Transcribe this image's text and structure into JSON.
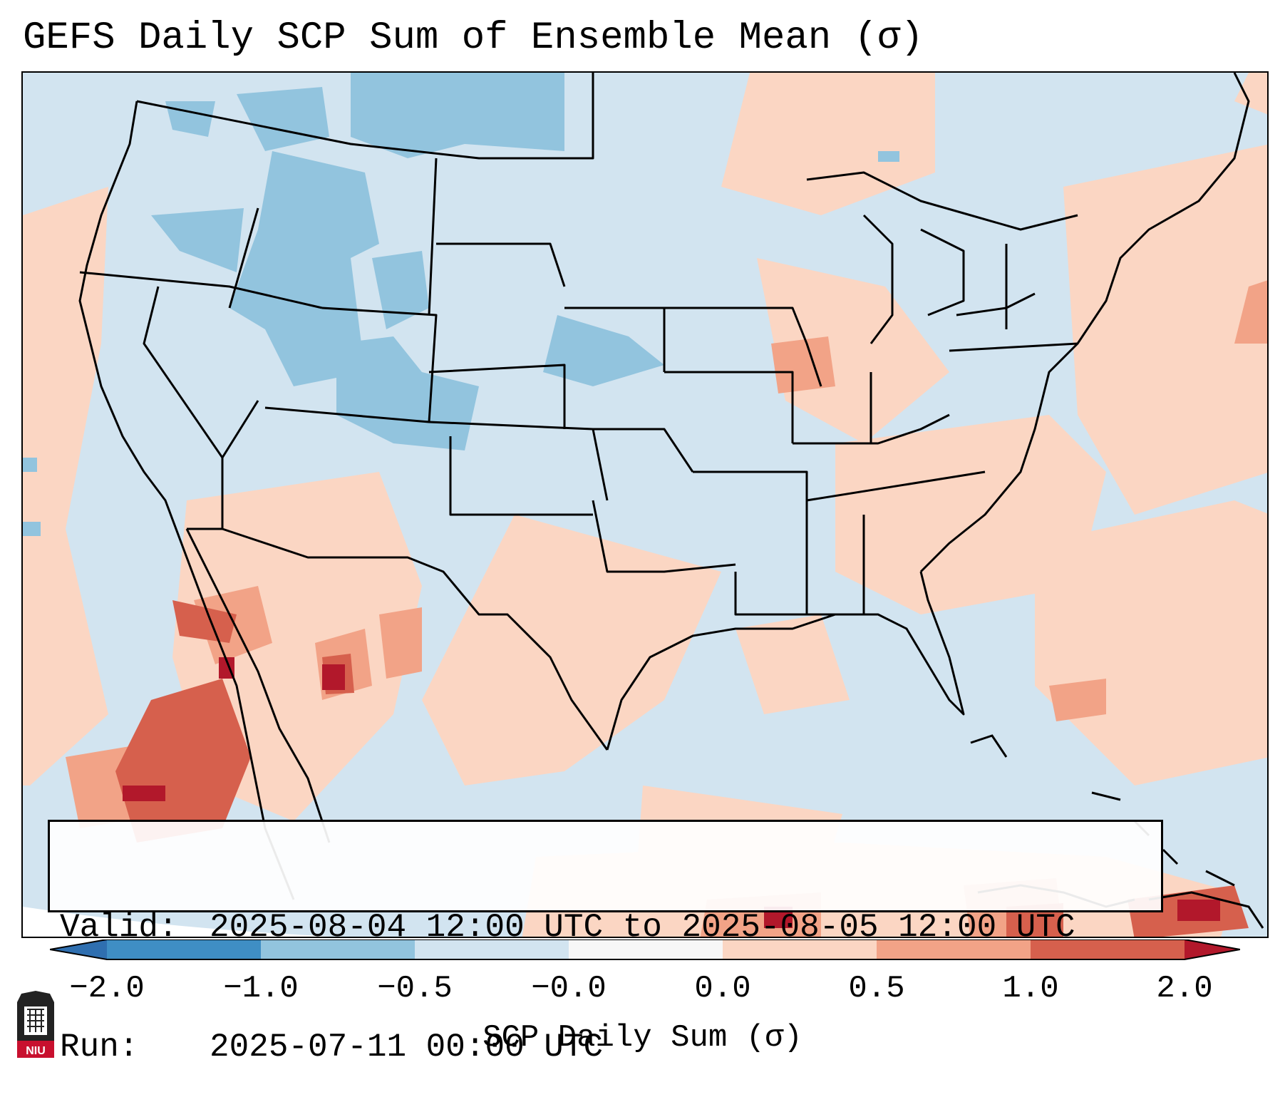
{
  "title": "GEFS Daily SCP Sum of Ensemble Mean (σ)",
  "info": {
    "valid_label": "Valid:",
    "valid_value": "2025-08-04 12:00 UTC to 2025-08-05 12:00 UTC",
    "run_label": "Run:",
    "run_value": "2025-07-11 00:00 UTC"
  },
  "colorbar": {
    "label": "SCP Daily Sum (σ)",
    "ticks": [
      "−2.0",
      "−1.0",
      "−0.5",
      "−0.0",
      "0.0",
      "0.5",
      "1.0",
      "2.0"
    ],
    "bins": [
      {
        "range": "< -2.0",
        "color": "#2f6fb0"
      },
      {
        "range": "-2.0 to -1.0",
        "color": "#3f8ec4"
      },
      {
        "range": "-1.0 to -0.5",
        "color": "#92c4de"
      },
      {
        "range": "-0.5 to -0.0",
        "color": "#d2e4f0"
      },
      {
        "range": "-0.0 to 0.0",
        "color": "#f7f7f7"
      },
      {
        "range": "0.0 to 0.5",
        "color": "#fbd6c3"
      },
      {
        "range": "0.5 to 1.0",
        "color": "#f2a387"
      },
      {
        "range": "1.0 to 2.0",
        "color": "#d6604d"
      },
      {
        "range": "> 2.0",
        "color": "#b2182b"
      }
    ]
  },
  "colors": {
    "neg_light": "#d2e4f0",
    "neg_mid": "#92c4de",
    "pos_light": "#fbd6c3",
    "pos_mid": "#f2a387",
    "pos_high": "#d6604d",
    "pos_max": "#b2182b"
  },
  "logo": {
    "text": "NIU",
    "icon": "niu-logo-icon"
  }
}
